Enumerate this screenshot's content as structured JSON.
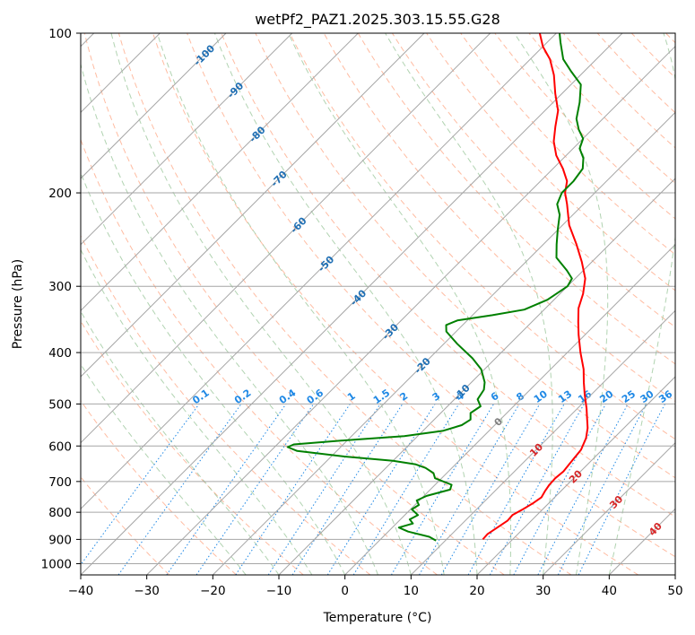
{
  "chart_data": {
    "type": "line",
    "title": "wetPf2_PAZ1.2025.303.15.55.G28",
    "xlabel": "Temperature (°C)",
    "ylabel": "Pressure (hPa)",
    "xlim": [
      -40,
      50
    ],
    "ylim": [
      1050,
      100
    ],
    "y_scale": "log",
    "skew": "Skew-T log-P",
    "x_ticks": [
      -40,
      -30,
      -20,
      -10,
      0,
      10,
      20,
      30,
      40,
      50
    ],
    "y_ticks": [
      100,
      200,
      300,
      400,
      500,
      600,
      700,
      800,
      900,
      1000
    ],
    "grid": true,
    "colors": {
      "temperature": "#ff0000",
      "dewpoint": "#008000",
      "isotherm": "#a6a6a6",
      "isobar": "#a6a6a6",
      "dry_adiabat": "#ffa07a",
      "moist_adiabat": "#90c090",
      "mixing_ratio": "#1e88e5",
      "isotherm_label": "#1f6fb4",
      "temp_label_warm": "#d62728",
      "zero_label": "#808080"
    },
    "isotherm_labels": [
      {
        "t": -100,
        "p": 110
      },
      {
        "t": -90,
        "p": 128
      },
      {
        "t": -80,
        "p": 155
      },
      {
        "t": -70,
        "p": 188
      },
      {
        "t": -60,
        "p": 230
      },
      {
        "t": -50,
        "p": 272
      },
      {
        "t": -40,
        "p": 315
      },
      {
        "t": -30,
        "p": 365
      },
      {
        "t": -20,
        "p": 423
      },
      {
        "t": -10,
        "p": 475
      },
      {
        "t": 0,
        "p": 540
      },
      {
        "t": 10,
        "p": 610
      },
      {
        "t": 20,
        "p": 685
      },
      {
        "t": 30,
        "p": 765
      },
      {
        "t": 40,
        "p": 860
      }
    ],
    "mixing_ratio_labels": [
      "0.1",
      "0.2",
      "0.4",
      "0.6",
      "1",
      "1.5",
      "2",
      "3",
      "4",
      "6",
      "8",
      "10",
      "13",
      "16",
      "20",
      "25",
      "30",
      "36"
    ],
    "series": [
      {
        "name": "Temperature",
        "color": "#ff0000",
        "points": [
          [
            15.5,
            900
          ],
          [
            15.4,
            880
          ],
          [
            16.0,
            850
          ],
          [
            16.4,
            830
          ],
          [
            16.3,
            810
          ],
          [
            17.0,
            790
          ],
          [
            17.6,
            770
          ],
          [
            18.0,
            750
          ],
          [
            17.6,
            730
          ],
          [
            17.3,
            710
          ],
          [
            17.2,
            690
          ],
          [
            17.4,
            670
          ],
          [
            17.2,
            650
          ],
          [
            17.0,
            630
          ],
          [
            16.8,
            610
          ],
          [
            15.8,
            580
          ],
          [
            14.5,
            555
          ],
          [
            12.8,
            530
          ],
          [
            11.4,
            510
          ],
          [
            9.0,
            480
          ],
          [
            7.0,
            455
          ],
          [
            5.0,
            430
          ],
          [
            2.0,
            400
          ],
          [
            -1.0,
            370
          ],
          [
            -3.0,
            350
          ],
          [
            -5.0,
            330
          ],
          [
            -6.5,
            310
          ],
          [
            -8.5,
            290
          ],
          [
            -11.5,
            270
          ],
          [
            -15.0,
            250
          ],
          [
            -19.0,
            230
          ],
          [
            -22.5,
            210
          ],
          [
            -24.5,
            200
          ],
          [
            -26.0,
            190
          ],
          [
            -28.5,
            180
          ],
          [
            -31.5,
            170
          ],
          [
            -34.0,
            160
          ],
          [
            -36.0,
            150
          ],
          [
            -38.0,
            140
          ],
          [
            -41.0,
            130
          ],
          [
            -44.0,
            120
          ],
          [
            -47.0,
            112
          ],
          [
            -50.0,
            106
          ],
          [
            -52.5,
            100
          ]
        ]
      },
      {
        "name": "Dewpoint",
        "color": "#008000",
        "points": [
          [
            8.6,
            905
          ],
          [
            7.0,
            890
          ],
          [
            3.0,
            870
          ],
          [
            1.0,
            855
          ],
          [
            2.5,
            840
          ],
          [
            1.4,
            825
          ],
          [
            2.0,
            810
          ],
          [
            0.2,
            790
          ],
          [
            0.6,
            775
          ],
          [
            -0.4,
            760
          ],
          [
            0.4,
            745
          ],
          [
            3.0,
            725
          ],
          [
            2.5,
            710
          ],
          [
            -1.0,
            690
          ],
          [
            -2.0,
            675
          ],
          [
            -4.0,
            660
          ],
          [
            -6.0,
            650
          ],
          [
            -10.0,
            640
          ],
          [
            -18.0,
            628
          ],
          [
            -26.0,
            613
          ],
          [
            -28.0,
            603
          ],
          [
            -27.5,
            596
          ],
          [
            -20.0,
            585
          ],
          [
            -12.0,
            575
          ],
          [
            -7.0,
            562
          ],
          [
            -5.0,
            548
          ],
          [
            -4.5,
            535
          ],
          [
            -5.5,
            520
          ],
          [
            -5.0,
            505
          ],
          [
            -6.5,
            490
          ],
          [
            -7.0,
            470
          ],
          [
            -8.0,
            455
          ],
          [
            -10.5,
            430
          ],
          [
            -13.5,
            410
          ],
          [
            -18.0,
            385
          ],
          [
            -21.5,
            365
          ],
          [
            -22.5,
            355
          ],
          [
            -21.5,
            348
          ],
          [
            -17.0,
            340
          ],
          [
            -13.0,
            332
          ],
          [
            -11.0,
            318
          ],
          [
            -10.0,
            300
          ],
          [
            -10.5,
            290
          ],
          [
            -12.5,
            280
          ],
          [
            -16.0,
            265
          ],
          [
            -18.0,
            250
          ],
          [
            -20.0,
            235
          ],
          [
            -22.0,
            220
          ],
          [
            -24.0,
            210
          ],
          [
            -25.0,
            200
          ],
          [
            -25.0,
            190
          ],
          [
            -25.5,
            180
          ],
          [
            -27.0,
            172
          ],
          [
            -29.0,
            165
          ],
          [
            -30.0,
            158
          ],
          [
            -32.0,
            152
          ],
          [
            -34.0,
            145
          ],
          [
            -36.0,
            135
          ],
          [
            -38.5,
            125
          ],
          [
            -42.0,
            118
          ],
          [
            -45.0,
            112
          ],
          [
            -48.0,
            104
          ],
          [
            -49.5,
            100
          ]
        ]
      }
    ]
  }
}
